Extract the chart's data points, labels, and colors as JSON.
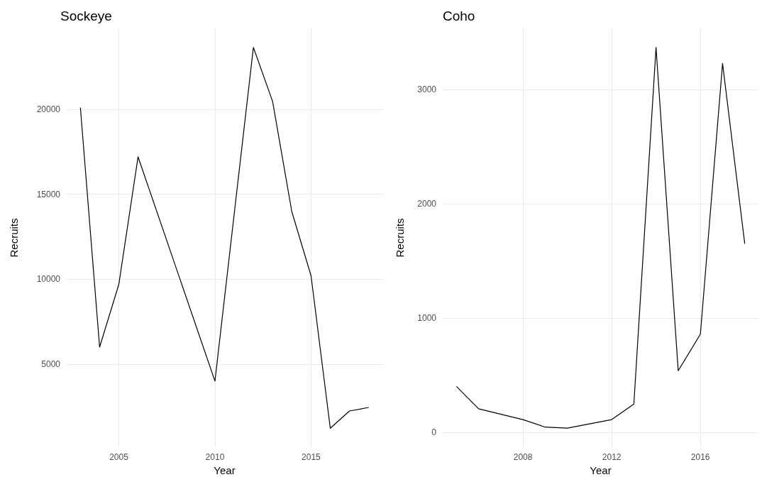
{
  "chart_data": [
    {
      "type": "line",
      "title": "Sockeye",
      "xlabel": "Year",
      "ylabel": "Recruits",
      "color": "#000000",
      "x": [
        2003,
        2004,
        2005,
        2006,
        2010,
        2012,
        2013,
        2014,
        2015,
        2016,
        2017,
        2018
      ],
      "values": [
        20100,
        6000,
        9700,
        17200,
        4000,
        23640,
        20460,
        13970,
        10200,
        1230,
        2240,
        2450
      ],
      "xlim": [
        2002.25,
        2018.75
      ],
      "xticks": [
        2005,
        2010,
        2015
      ],
      "ylim": [
        110,
        24760
      ],
      "yticks": [
        5000,
        10000,
        15000,
        20000
      ],
      "grid": true
    },
    {
      "type": "line",
      "title": "Coho",
      "xlabel": "Year",
      "ylabel": "Recruits",
      "color": "#000000",
      "x": [
        2005,
        2006,
        2008,
        2009,
        2010,
        2012,
        2013,
        2014,
        2015,
        2016,
        2017,
        2018
      ],
      "values": [
        400,
        205,
        110,
        44,
        35,
        110,
        246,
        3370,
        538,
        858,
        3230,
        1650
      ],
      "xlim": [
        2004.35,
        2018.65
      ],
      "xticks": [
        2008,
        2012,
        2016
      ],
      "ylim": [
        -132,
        3537
      ],
      "yticks": [
        0,
        1000,
        2000,
        3000
      ],
      "grid": true
    }
  ]
}
